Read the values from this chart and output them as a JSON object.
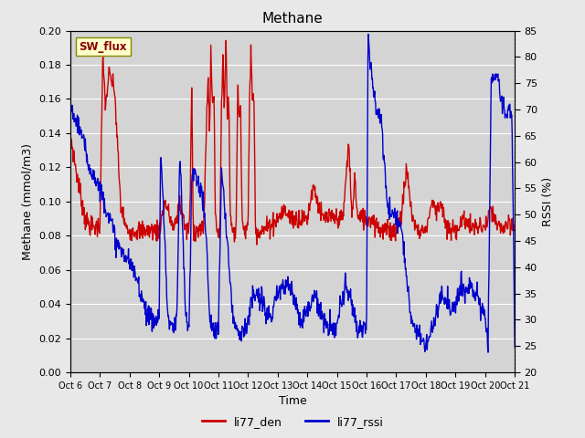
{
  "title": "Methane",
  "xlabel": "Time",
  "ylabel_left": "Methane (mmol/m3)",
  "ylabel_right": "RSSI (%)",
  "ylim_left": [
    0.0,
    0.2
  ],
  "ylim_right": [
    20,
    85
  ],
  "yticks_left": [
    0.0,
    0.02,
    0.04,
    0.06,
    0.08,
    0.1,
    0.12,
    0.14,
    0.16,
    0.18,
    0.2
  ],
  "yticks_right": [
    20,
    25,
    30,
    35,
    40,
    45,
    50,
    55,
    60,
    65,
    70,
    75,
    80,
    85
  ],
  "xtick_labels": [
    "Oct 6",
    "Oct 7",
    "Oct 8",
    "Oct 9",
    "Oct 10",
    "Oct 11",
    "Oct 12",
    "Oct 13",
    "Oct 14",
    "Oct 15",
    "Oct 16",
    "Oct 17",
    "Oct 18",
    "Oct 19",
    "Oct 20",
    "Oct 21"
  ],
  "line_color_red": "#cc0000",
  "line_color_blue": "#0000cc",
  "legend_label_red": "li77_den",
  "legend_label_blue": "li77_rssi",
  "sw_flux_box_color": "#ffffcc",
  "sw_flux_text_color": "#880000",
  "fig_bg_color": "#e8e8e8",
  "plot_bg_color": "#d4d4d4",
  "grid_color": "#ffffff",
  "linewidth": 1.0
}
